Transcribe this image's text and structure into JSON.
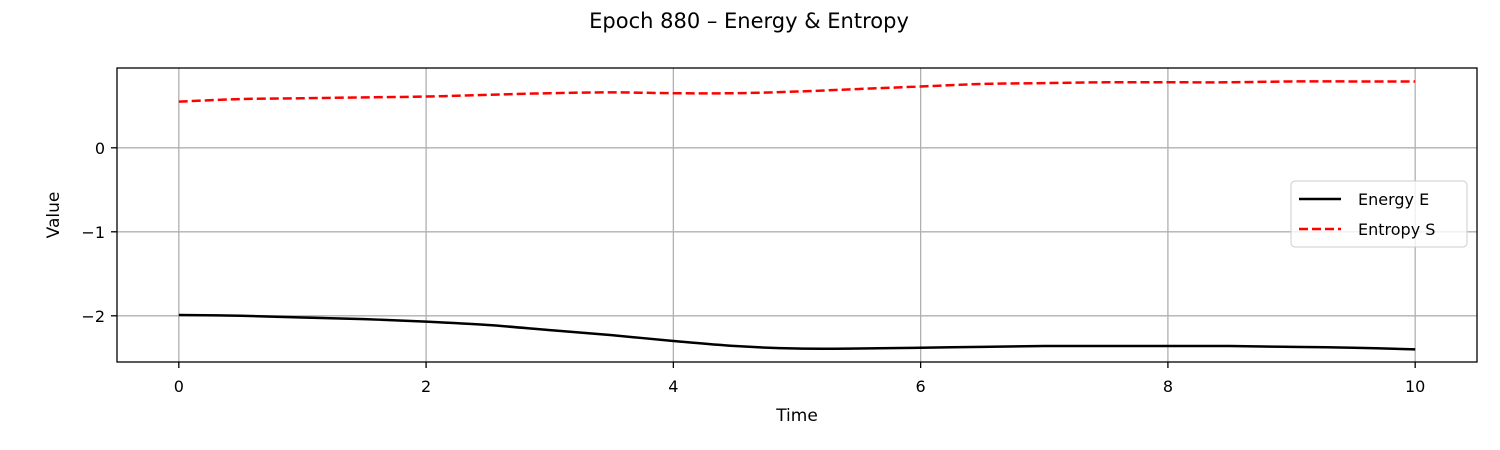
{
  "chart_data": {
    "type": "line",
    "title": "Epoch 880 – Energy & Entropy",
    "xlabel": "Time",
    "ylabel": "Value",
    "xlim": [
      -0.5,
      10.5
    ],
    "ylim": [
      -2.55,
      0.95
    ],
    "xticks": [
      0,
      2,
      4,
      6,
      8,
      10
    ],
    "xtick_labels": [
      "0",
      "2",
      "4",
      "6",
      "8",
      "10"
    ],
    "yticks": [
      0,
      -1,
      -2
    ],
    "ytick_labels": [
      "0",
      "−1",
      "−2"
    ],
    "grid": true,
    "legend_position": "center-right",
    "x": [
      0,
      0.5,
      1,
      1.5,
      2,
      2.5,
      3,
      3.5,
      4,
      4.5,
      5,
      5.5,
      6,
      6.5,
      7,
      7.5,
      8,
      8.5,
      9,
      9.5,
      10
    ],
    "series": [
      {
        "name": "Energy E",
        "color": "#000000",
        "style": "solid",
        "values": [
          -1.99,
          -2.0,
          -2.02,
          -2.04,
          -2.07,
          -2.11,
          -2.17,
          -2.23,
          -2.3,
          -2.36,
          -2.39,
          -2.39,
          -2.38,
          -2.37,
          -2.36,
          -2.36,
          -2.36,
          -2.36,
          -2.37,
          -2.38,
          -2.4
        ]
      },
      {
        "name": "Entropy S",
        "color": "#ff0000",
        "style": "dashed",
        "values": [
          0.55,
          0.58,
          0.59,
          0.6,
          0.61,
          0.63,
          0.65,
          0.66,
          0.65,
          0.65,
          0.67,
          0.7,
          0.73,
          0.76,
          0.77,
          0.78,
          0.78,
          0.78,
          0.79,
          0.79,
          0.79
        ]
      }
    ]
  }
}
